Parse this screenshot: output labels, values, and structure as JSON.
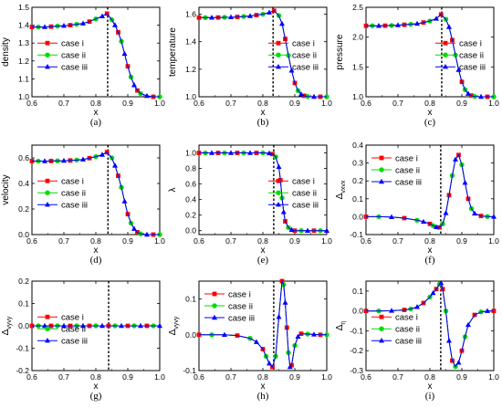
{
  "legend_entries": [
    "case i",
    "case ii",
    "case iii"
  ],
  "series_colors": [
    "#ff0000",
    "#00dd00",
    "#0000ff"
  ],
  "series_markers": [
    "square",
    "circle",
    "triangle"
  ],
  "chart_data": [
    {
      "type": "line",
      "panel": "(a)",
      "ylabel": "density",
      "xlabel": "x",
      "xlim": [
        0.6,
        1.0
      ],
      "ylim": [
        1.0,
        1.5
      ],
      "xticks": [
        "0.6",
        "0.7",
        "0.8",
        "0.9",
        "1.0"
      ],
      "yticks": [
        "1.0",
        "1.1",
        "1.2",
        "1.3",
        "1.4",
        "1.5"
      ],
      "vline_x": 0.837,
      "legend": "center-left",
      "x": [
        0.6,
        0.62,
        0.64,
        0.66,
        0.68,
        0.7,
        0.72,
        0.74,
        0.76,
        0.78,
        0.8,
        0.82,
        0.835,
        0.85,
        0.86,
        0.87,
        0.88,
        0.89,
        0.9,
        0.91,
        0.92,
        0.93,
        0.94,
        0.96,
        0.98,
        1.0
      ],
      "y": [
        1.39,
        1.39,
        1.39,
        1.392,
        1.395,
        1.397,
        1.4,
        1.405,
        1.41,
        1.42,
        1.435,
        1.45,
        1.465,
        1.43,
        1.4,
        1.36,
        1.31,
        1.24,
        1.17,
        1.11,
        1.065,
        1.035,
        1.018,
        1.005,
        1.0,
        1.0
      ]
    },
    {
      "type": "line",
      "panel": "(b)",
      "ylabel": "temperature",
      "xlabel": "x",
      "xlim": [
        0.6,
        1.0
      ],
      "ylim": [
        1.0,
        1.65
      ],
      "xticks": [
        "0.6",
        "0.7",
        "0.8",
        "0.9",
        "1.0"
      ],
      "yticks": [
        "1.0",
        "1.2",
        "1.4",
        "1.6"
      ],
      "vline_x": 0.832,
      "legend": "center-right",
      "x": [
        0.6,
        0.62,
        0.64,
        0.66,
        0.68,
        0.7,
        0.72,
        0.74,
        0.76,
        0.78,
        0.8,
        0.82,
        0.835,
        0.85,
        0.86,
        0.87,
        0.88,
        0.89,
        0.9,
        0.91,
        0.92,
        0.93,
        0.94,
        0.96,
        0.98,
        1.0
      ],
      "y": [
        1.575,
        1.575,
        1.575,
        1.576,
        1.577,
        1.578,
        1.58,
        1.583,
        1.587,
        1.593,
        1.6,
        1.612,
        1.625,
        1.59,
        1.53,
        1.42,
        1.3,
        1.19,
        1.1,
        1.045,
        1.018,
        1.007,
        1.002,
        1.0,
        1.0,
        1.0
      ]
    },
    {
      "type": "line",
      "panel": "(c)",
      "ylabel": "pressure",
      "xlabel": "x",
      "xlim": [
        0.6,
        1.0
      ],
      "ylim": [
        1.0,
        2.5
      ],
      "xticks": [
        "0.6",
        "0.7",
        "0.8",
        "0.9",
        "1.0"
      ],
      "yticks": [
        "1.0",
        "1.5",
        "2.0",
        "2.5"
      ],
      "vline_x": 0.837,
      "legend": "center-right",
      "x": [
        0.6,
        0.62,
        0.64,
        0.66,
        0.68,
        0.7,
        0.72,
        0.74,
        0.76,
        0.78,
        0.8,
        0.82,
        0.835,
        0.85,
        0.86,
        0.87,
        0.88,
        0.89,
        0.9,
        0.91,
        0.92,
        0.93,
        0.94,
        0.96,
        0.98,
        1.0
      ],
      "y": [
        2.19,
        2.19,
        2.19,
        2.192,
        2.195,
        2.2,
        2.207,
        2.215,
        2.225,
        2.245,
        2.27,
        2.31,
        2.38,
        2.3,
        2.17,
        1.95,
        1.7,
        1.45,
        1.25,
        1.12,
        1.05,
        1.02,
        1.005,
        1.0,
        1.0,
        1.0
      ]
    },
    {
      "type": "line",
      "panel": "(d)",
      "ylabel": "velocity",
      "xlabel": "x",
      "xlim": [
        0.6,
        1.0
      ],
      "ylim": [
        0.0,
        0.7
      ],
      "xticks": [
        "0.6",
        "0.7",
        "0.8",
        "0.9",
        "1.0"
      ],
      "yticks": [
        "0.0",
        "0.2",
        "0.4",
        "0.6"
      ],
      "vline_x": 0.838,
      "legend": "center-left",
      "x": [
        0.6,
        0.62,
        0.64,
        0.66,
        0.68,
        0.7,
        0.72,
        0.74,
        0.76,
        0.78,
        0.8,
        0.82,
        0.835,
        0.85,
        0.86,
        0.87,
        0.88,
        0.89,
        0.9,
        0.91,
        0.92,
        0.93,
        0.94,
        0.96,
        0.98,
        1.0
      ],
      "y": [
        0.575,
        0.575,
        0.575,
        0.576,
        0.577,
        0.578,
        0.58,
        0.583,
        0.588,
        0.598,
        0.61,
        0.625,
        0.645,
        0.6,
        0.54,
        0.46,
        0.37,
        0.26,
        0.16,
        0.09,
        0.045,
        0.018,
        0.006,
        0.0,
        0.0,
        0.0
      ]
    },
    {
      "type": "line",
      "panel": "(e)",
      "ylabel": "λ",
      "xlabel": "x",
      "xlim": [
        0.6,
        1.0
      ],
      "ylim": [
        -0.05,
        1.1
      ],
      "xticks": [
        "0.6",
        "0.7",
        "0.8",
        "0.9",
        "1.0"
      ],
      "yticks": [
        "0.0",
        "0.2",
        "0.4",
        "0.6",
        "0.8",
        "1.0"
      ],
      "vline_x": 0.834,
      "legend": "center-right",
      "x": [
        0.6,
        0.62,
        0.64,
        0.66,
        0.68,
        0.7,
        0.72,
        0.74,
        0.76,
        0.78,
        0.8,
        0.82,
        0.83,
        0.84,
        0.85,
        0.855,
        0.86,
        0.865,
        0.87,
        0.88,
        0.89,
        0.9,
        0.92,
        0.94,
        0.96,
        0.98,
        1.0
      ],
      "y": [
        1.0,
        1.0,
        1.0,
        1.0,
        1.0,
        1.0,
        1.0,
        1.0,
        1.0,
        1.0,
        1.0,
        0.995,
        0.985,
        0.95,
        0.82,
        0.65,
        0.42,
        0.24,
        0.12,
        0.04,
        0.01,
        0.0,
        0.0,
        0.0,
        0.0,
        0.0,
        0.0
      ]
    },
    {
      "type": "line",
      "panel": "(f)",
      "ylabel": "Δ_{vxvx}",
      "xlabel": "x",
      "xlim": [
        0.6,
        1.0
      ],
      "ylim": [
        -0.1,
        0.4
      ],
      "xticks": [
        "0.6",
        "0.7",
        "0.8",
        "0.9",
        "1.0"
      ],
      "yticks": [
        "-0.1",
        "0.0",
        "0.1",
        "0.2",
        "0.3",
        "0.4"
      ],
      "vline_x": 0.834,
      "legend": "upper-left",
      "x": [
        0.6,
        0.64,
        0.68,
        0.72,
        0.76,
        0.78,
        0.8,
        0.81,
        0.82,
        0.83,
        0.84,
        0.85,
        0.86,
        0.87,
        0.88,
        0.89,
        0.9,
        0.91,
        0.92,
        0.93,
        0.94,
        0.96,
        0.98,
        1.0
      ],
      "y": [
        0.0,
        0.0,
        -0.002,
        -0.008,
        -0.02,
        -0.028,
        -0.04,
        -0.05,
        -0.058,
        -0.06,
        -0.04,
        0.02,
        0.12,
        0.23,
        0.32,
        0.345,
        0.29,
        0.19,
        0.1,
        0.045,
        0.018,
        0.004,
        0.001,
        0.0
      ]
    },
    {
      "type": "line",
      "panel": "(g)",
      "ylabel": "Δ_{vyvy}",
      "xlabel": "x",
      "xlim": [
        0.6,
        1.0
      ],
      "ylim": [
        -0.2,
        0.2
      ],
      "xticks": [
        "0.6",
        "0.7",
        "0.8",
        "0.9",
        "1.0"
      ],
      "yticks": [
        "-0.2",
        "-0.1",
        "0.0",
        "0.1",
        "0.2"
      ],
      "vline_x": 0.84,
      "legend": "center-left",
      "x": [
        0.6,
        0.62,
        0.64,
        0.66,
        0.68,
        0.7,
        0.72,
        0.74,
        0.76,
        0.78,
        0.8,
        0.82,
        0.84,
        0.86,
        0.88,
        0.9,
        0.92,
        0.94,
        0.96,
        0.98,
        1.0
      ],
      "y": [
        0.0,
        0.0,
        0.0,
        0.0,
        0.0,
        0.0,
        0.0,
        0.0,
        0.0,
        0.0,
        0.0,
        0.0,
        0.0,
        0.0,
        0.0,
        0.0,
        0.0,
        0.0,
        0.0,
        0.0,
        0.0
      ]
    },
    {
      "type": "line",
      "panel": "(h)",
      "ylabel": "Δ_{vyvy}",
      "xlabel": "x",
      "xlim": [
        0.6,
        1.0
      ],
      "ylim": [
        -0.1,
        0.15
      ],
      "xticks": [
        "0.6",
        "0.7",
        "0.8",
        "0.9",
        "1.0"
      ],
      "yticks": [
        "-0.1",
        "0.0",
        "0.1"
      ],
      "vline_x": 0.834,
      "legend": "upper-left",
      "x": [
        0.6,
        0.64,
        0.68,
        0.72,
        0.76,
        0.78,
        0.8,
        0.81,
        0.82,
        0.83,
        0.84,
        0.85,
        0.86,
        0.865,
        0.87,
        0.875,
        0.88,
        0.885,
        0.89,
        0.9,
        0.91,
        0.92,
        0.94,
        0.96,
        0.98,
        1.0
      ],
      "y": [
        0.0,
        0.0,
        0.0,
        -0.002,
        -0.01,
        -0.02,
        -0.04,
        -0.06,
        -0.08,
        -0.09,
        -0.06,
        0.05,
        0.15,
        0.14,
        0.09,
        0.02,
        -0.05,
        -0.09,
        -0.085,
        -0.03,
        -0.005,
        0.003,
        0.002,
        0.001,
        0.0,
        0.0
      ]
    },
    {
      "type": "line",
      "panel": "(i)",
      "ylabel": "Δ_{η}",
      "xlabel": "x",
      "xlim": [
        0.6,
        1.0
      ],
      "ylim": [
        -0.3,
        0.15
      ],
      "xticks": [
        "0.6",
        "0.7",
        "0.8",
        "0.9",
        "1.0"
      ],
      "yticks": [
        "-0.3",
        "-0.2",
        "-0.1",
        "0.0",
        "0.1"
      ],
      "vline_x": 0.834,
      "legend": "center-left",
      "x": [
        0.6,
        0.64,
        0.68,
        0.72,
        0.74,
        0.76,
        0.78,
        0.8,
        0.81,
        0.82,
        0.83,
        0.835,
        0.84,
        0.85,
        0.86,
        0.87,
        0.88,
        0.89,
        0.9,
        0.91,
        0.92,
        0.94,
        0.96,
        0.98,
        1.0
      ],
      "y": [
        0.0,
        0.0,
        0.001,
        0.005,
        0.01,
        0.02,
        0.04,
        0.07,
        0.09,
        0.11,
        0.135,
        0.14,
        0.11,
        0.0,
        -0.15,
        -0.25,
        -0.28,
        -0.26,
        -0.2,
        -0.13,
        -0.07,
        -0.02,
        -0.005,
        0.0,
        0.0
      ]
    }
  ]
}
